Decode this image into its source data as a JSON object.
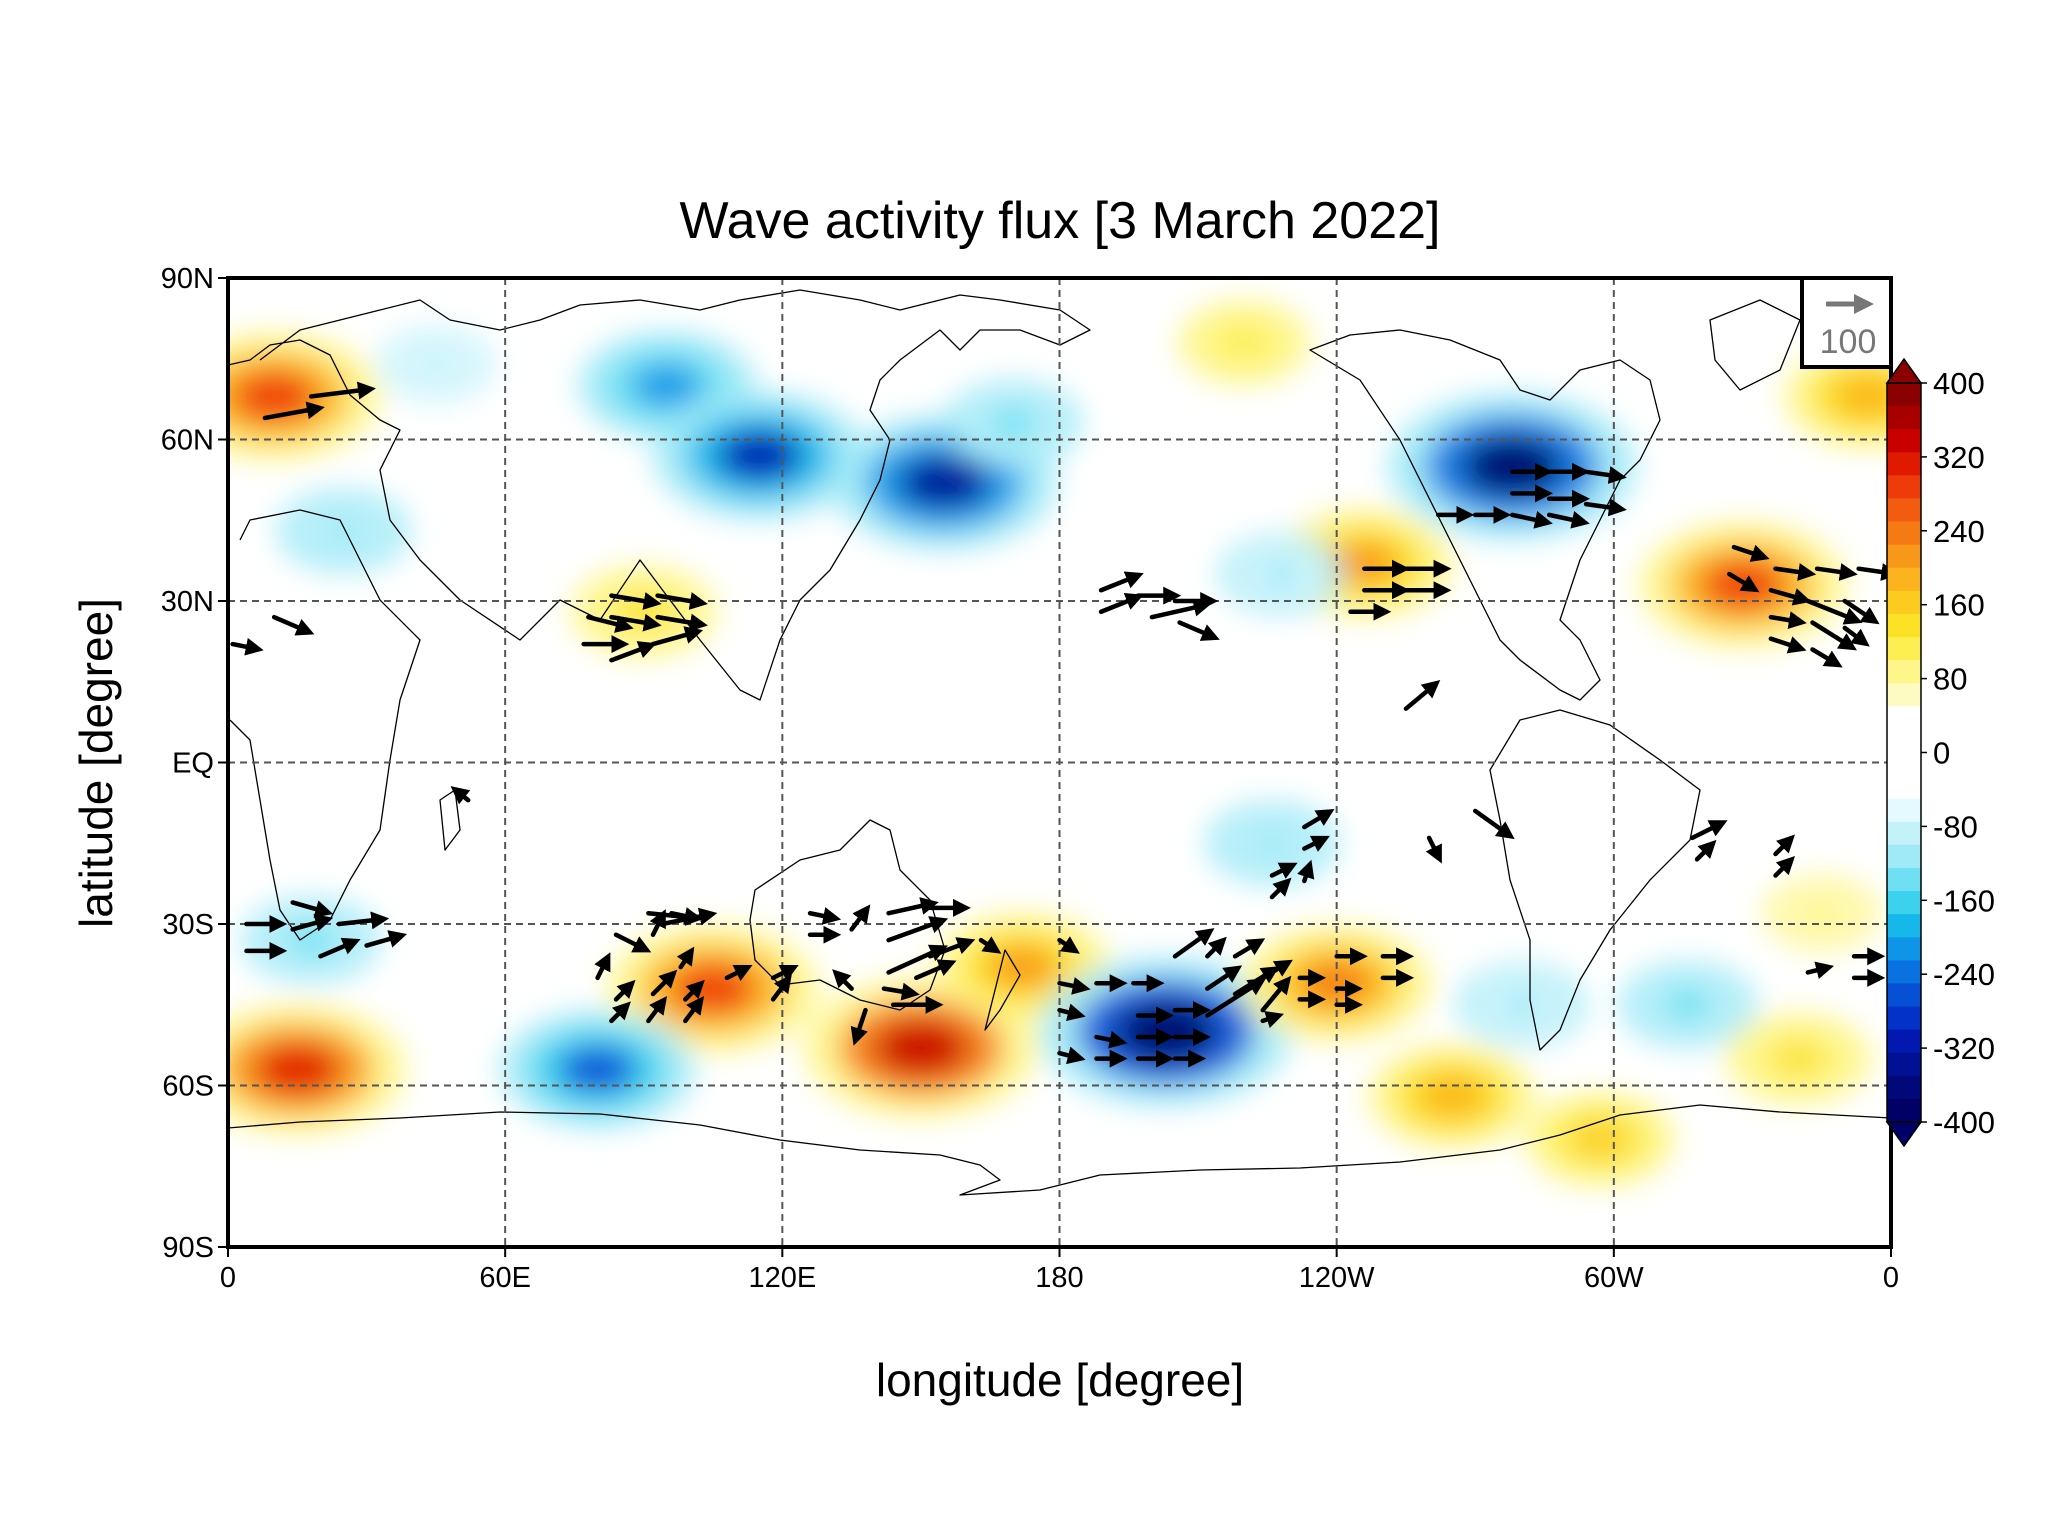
{
  "title": "Wave activity flux [3 March 2022]",
  "xlabel": "longitude [degree]",
  "ylabel": "latitude [degree]",
  "x_ticks": [
    {
      "lon": 0,
      "label": "0"
    },
    {
      "lon": 60,
      "label": "60E"
    },
    {
      "lon": 120,
      "label": "120E"
    },
    {
      "lon": 180,
      "label": "180"
    },
    {
      "lon": 240,
      "label": "120W"
    },
    {
      "lon": 300,
      "label": "60W"
    },
    {
      "lon": 360,
      "label": "0"
    }
  ],
  "y_ticks": [
    {
      "lat": 90,
      "label": "90N"
    },
    {
      "lat": 60,
      "label": "60N"
    },
    {
      "lat": 30,
      "label": "30N"
    },
    {
      "lat": 0,
      "label": "EQ"
    },
    {
      "lat": -30,
      "label": "30S"
    },
    {
      "lat": -60,
      "label": "60S"
    },
    {
      "lat": -90,
      "label": "90S"
    }
  ],
  "reference_vector": {
    "label": "100"
  },
  "colorbar": {
    "labels": [
      "400",
      "320",
      "240",
      "160",
      "80",
      "0",
      "-80",
      "-160",
      "-240",
      "-320",
      "-400"
    ],
    "colors_top_to_bottom": [
      "#8b0000",
      "#a80000",
      "#c80000",
      "#e01a00",
      "#ee3b0a",
      "#f25c10",
      "#f57a14",
      "#f8981a",
      "#fbb41e",
      "#fccb20",
      "#fde127",
      "#fdee52",
      "#fef68a",
      "#fefbc2",
      "#ffffff",
      "#ffffff",
      "#ffffff",
      "#ffffff",
      "#e4faff",
      "#c3f2fb",
      "#a0eaf7",
      "#6fe0f3",
      "#3cd2ee",
      "#16b8ec",
      "#0e95e8",
      "#0a72e0",
      "#0650d6",
      "#0432c8",
      "#0218b0",
      "#021093",
      "#01087a",
      "#000066"
    ]
  },
  "chart_data": {
    "type": "heatmap",
    "title": "Wave activity flux [3 March 2022]",
    "xlabel": "longitude [degree]",
    "ylabel": "latitude [degree]",
    "xlim": [
      0,
      360
    ],
    "ylim": [
      -90,
      90
    ],
    "grid": true,
    "colorbar_range": [
      -400,
      400
    ],
    "colorbar_step": 80,
    "field_anomalies": [
      {
        "lon": 10,
        "lat": 68,
        "value": 300
      },
      {
        "lon": 45,
        "lat": 74,
        "value": -80
      },
      {
        "lon": 95,
        "lat": 70,
        "value": -220
      },
      {
        "lon": 115,
        "lat": 57,
        "value": -300
      },
      {
        "lon": 155,
        "lat": 52,
        "value": -330
      },
      {
        "lon": 170,
        "lat": 63,
        "value": -130
      },
      {
        "lon": 25,
        "lat": 43,
        "value": -120
      },
      {
        "lon": 90,
        "lat": 28,
        "value": 150
      },
      {
        "lon": 220,
        "lat": 78,
        "value": 120
      },
      {
        "lon": 278,
        "lat": 55,
        "value": -380
      },
      {
        "lon": 246,
        "lat": 37,
        "value": 220
      },
      {
        "lon": 328,
        "lat": 33,
        "value": 290
      },
      {
        "lon": 355,
        "lat": 68,
        "value": 200
      },
      {
        "lon": 228,
        "lat": 35,
        "value": -100
      },
      {
        "lon": 226,
        "lat": -15,
        "value": -120
      },
      {
        "lon": 18,
        "lat": -33,
        "value": -130
      },
      {
        "lon": 15,
        "lat": -57,
        "value": 310
      },
      {
        "lon": 105,
        "lat": -42,
        "value": 300
      },
      {
        "lon": 150,
        "lat": -53,
        "value": 350
      },
      {
        "lon": 172,
        "lat": -38,
        "value": 220
      },
      {
        "lon": 80,
        "lat": -57,
        "value": -260
      },
      {
        "lon": 203,
        "lat": -50,
        "value": -390
      },
      {
        "lon": 240,
        "lat": -41,
        "value": 250
      },
      {
        "lon": 280,
        "lat": -45,
        "value": -110
      },
      {
        "lon": 316,
        "lat": -45,
        "value": -130
      },
      {
        "lon": 265,
        "lat": -62,
        "value": 200
      },
      {
        "lon": 297,
        "lat": -70,
        "value": 160
      },
      {
        "lon": 340,
        "lat": -55,
        "value": 150
      },
      {
        "lon": 345,
        "lat": -28,
        "value": 80
      }
    ],
    "vectors": [
      {
        "lon": 8,
        "lat": 64,
        "u": 22,
        "v": 4
      },
      {
        "lon": 18,
        "lat": 68,
        "u": 24,
        "v": 3
      },
      {
        "lon": 1,
        "lat": 22,
        "u": 10,
        "v": -2
      },
      {
        "lon": 10,
        "lat": 27,
        "u": 14,
        "v": -6
      },
      {
        "lon": 78,
        "lat": 27,
        "u": 16,
        "v": -4
      },
      {
        "lon": 77,
        "lat": 22,
        "u": 16,
        "v": 0
      },
      {
        "lon": 83,
        "lat": 31,
        "u": 18,
        "v": -3
      },
      {
        "lon": 83,
        "lat": 27,
        "u": 18,
        "v": -3
      },
      {
        "lon": 93,
        "lat": 31,
        "u": 18,
        "v": -3
      },
      {
        "lon": 93,
        "lat": 27,
        "u": 18,
        "v": -3
      },
      {
        "lon": 83,
        "lat": 19,
        "u": 16,
        "v": 6
      },
      {
        "lon": 92,
        "lat": 22,
        "u": 18,
        "v": 5
      },
      {
        "lon": 189,
        "lat": 32,
        "u": 15,
        "v": 6
      },
      {
        "lon": 189,
        "lat": 28,
        "u": 15,
        "v": 6
      },
      {
        "lon": 197,
        "lat": 31,
        "u": 15,
        "v": 0
      },
      {
        "lon": 205,
        "lat": 30,
        "u": 15,
        "v": 0
      },
      {
        "lon": 200,
        "lat": 27,
        "u": 22,
        "v": 5
      },
      {
        "lon": 206,
        "lat": 26,
        "u": 14,
        "v": -6
      },
      {
        "lon": 246,
        "lat": 36,
        "u": 16,
        "v": 0
      },
      {
        "lon": 246,
        "lat": 32,
        "u": 16,
        "v": 0
      },
      {
        "lon": 255,
        "lat": 36,
        "u": 16,
        "v": 0
      },
      {
        "lon": 255,
        "lat": 32,
        "u": 16,
        "v": 0
      },
      {
        "lon": 243,
        "lat": 28,
        "u": 14,
        "v": 0
      },
      {
        "lon": 255,
        "lat": 10,
        "u": 12,
        "v": 10
      },
      {
        "lon": 262,
        "lat": 46,
        "u": 12,
        "v": 0
      },
      {
        "lon": 270,
        "lat": 46,
        "u": 12,
        "v": 0
      },
      {
        "lon": 278,
        "lat": 54,
        "u": 14,
        "v": 0
      },
      {
        "lon": 286,
        "lat": 54,
        "u": 14,
        "v": 0
      },
      {
        "lon": 294,
        "lat": 54,
        "u": 14,
        "v": -2
      },
      {
        "lon": 278,
        "lat": 50,
        "u": 14,
        "v": 0
      },
      {
        "lon": 286,
        "lat": 49,
        "u": 14,
        "v": 0
      },
      {
        "lon": 294,
        "lat": 48,
        "u": 14,
        "v": -2
      },
      {
        "lon": 278,
        "lat": 46,
        "u": 14,
        "v": -3
      },
      {
        "lon": 286,
        "lat": 46,
        "u": 14,
        "v": -3
      },
      {
        "lon": 326,
        "lat": 40,
        "u": 12,
        "v": -4
      },
      {
        "lon": 335,
        "lat": 36,
        "u": 14,
        "v": -2
      },
      {
        "lon": 344,
        "lat": 36,
        "u": 14,
        "v": -2
      },
      {
        "lon": 353,
        "lat": 36,
        "u": 14,
        "v": -2
      },
      {
        "lon": 325,
        "lat": 35,
        "u": 10,
        "v": -6
      },
      {
        "lon": 334,
        "lat": 32,
        "u": 14,
        "v": -4
      },
      {
        "lon": 342,
        "lat": 30,
        "u": 20,
        "v": -8
      },
      {
        "lon": 350,
        "lat": 30,
        "u": 12,
        "v": -8
      },
      {
        "lon": 334,
        "lat": 27,
        "u": 12,
        "v": -2
      },
      {
        "lon": 343,
        "lat": 26,
        "u": 16,
        "v": -10
      },
      {
        "lon": 350,
        "lat": 25,
        "u": 8,
        "v": -6
      },
      {
        "lon": 334,
        "lat": 23,
        "u": 12,
        "v": -4
      },
      {
        "lon": 343,
        "lat": 21,
        "u": 10,
        "v": -6
      },
      {
        "lon": 14,
        "lat": -26,
        "u": 14,
        "v": -4
      },
      {
        "lon": 52,
        "lat": -7,
        "u": -5,
        "v": 4
      },
      {
        "lon": 4,
        "lat": -30,
        "u": 14,
        "v": 0
      },
      {
        "lon": 4,
        "lat": -35,
        "u": 14,
        "v": 0
      },
      {
        "lon": 14,
        "lat": -31,
        "u": 14,
        "v": 4
      },
      {
        "lon": 24,
        "lat": -30,
        "u": 18,
        "v": 2
      },
      {
        "lon": 20,
        "lat": -36,
        "u": 14,
        "v": 6
      },
      {
        "lon": 30,
        "lat": -34,
        "u": 14,
        "v": 4
      },
      {
        "lon": 84,
        "lat": -32,
        "u": 12,
        "v": -6
      },
      {
        "lon": 91,
        "lat": -28,
        "u": 20,
        "v": -2
      },
      {
        "lon": 94,
        "lat": -30,
        "u": 20,
        "v": 4
      },
      {
        "lon": 96,
        "lat": -28,
        "u": 10,
        "v": -2
      },
      {
        "lon": 80,
        "lat": -40,
        "u": 4,
        "v": 8
      },
      {
        "lon": 84,
        "lat": -44,
        "u": 6,
        "v": 6
      },
      {
        "lon": 92,
        "lat": -32,
        "u": 4,
        "v": 8
      },
      {
        "lon": 92,
        "lat": -43,
        "u": 8,
        "v": 8
      },
      {
        "lon": 98,
        "lat": -38,
        "u": 4,
        "v": 6
      },
      {
        "lon": 99,
        "lat": -44,
        "u": 6,
        "v": 6
      },
      {
        "lon": 83,
        "lat": -48,
        "u": 6,
        "v": 6
      },
      {
        "lon": 91,
        "lat": -48,
        "u": 6,
        "v": 8
      },
      {
        "lon": 99,
        "lat": -48,
        "u": 6,
        "v": 8
      },
      {
        "lon": 108,
        "lat": -40,
        "u": 8,
        "v": 4
      },
      {
        "lon": 118,
        "lat": -40,
        "u": 8,
        "v": 4
      },
      {
        "lon": 118,
        "lat": -44,
        "u": 6,
        "v": 8
      },
      {
        "lon": 126,
        "lat": -28,
        "u": 10,
        "v": -2
      },
      {
        "lon": 126,
        "lat": -32,
        "u": 10,
        "v": 0
      },
      {
        "lon": 135,
        "lat": -31,
        "u": 6,
        "v": 8
      },
      {
        "lon": 143,
        "lat": -28,
        "u": 18,
        "v": 4
      },
      {
        "lon": 152,
        "lat": -27,
        "u": 14,
        "v": 0
      },
      {
        "lon": 143,
        "lat": -33,
        "u": 22,
        "v": 8
      },
      {
        "lon": 143,
        "lat": -39,
        "u": 22,
        "v": 10
      },
      {
        "lon": 152,
        "lat": -36,
        "u": 16,
        "v": 6
      },
      {
        "lon": 135,
        "lat": -42,
        "u": -6,
        "v": 6
      },
      {
        "lon": 142,
        "lat": -42,
        "u": 12,
        "v": -2
      },
      {
        "lon": 149,
        "lat": -40,
        "u": 14,
        "v": 6
      },
      {
        "lon": 144,
        "lat": -45,
        "u": 18,
        "v": 0
      },
      {
        "lon": 138,
        "lat": -46,
        "u": -4,
        "v": -12
      },
      {
        "lon": 163,
        "lat": -33,
        "u": 6,
        "v": -4
      },
      {
        "lon": 180,
        "lat": -33,
        "u": 6,
        "v": -4
      },
      {
        "lon": 180,
        "lat": -41,
        "u": 10,
        "v": -2
      },
      {
        "lon": 180,
        "lat": -46,
        "u": 8,
        "v": -2
      },
      {
        "lon": 180,
        "lat": -54,
        "u": 8,
        "v": -2
      },
      {
        "lon": 188,
        "lat": -41,
        "u": 10,
        "v": 0
      },
      {
        "lon": 196,
        "lat": -41,
        "u": 10,
        "v": 0
      },
      {
        "lon": 188,
        "lat": -51,
        "u": 10,
        "v": -2
      },
      {
        "lon": 188,
        "lat": -55,
        "u": 10,
        "v": 0
      },
      {
        "lon": 197,
        "lat": -47,
        "u": 12,
        "v": 0
      },
      {
        "lon": 197,
        "lat": -51,
        "u": 12,
        "v": 0
      },
      {
        "lon": 197,
        "lat": -55,
        "u": 12,
        "v": 0
      },
      {
        "lon": 205,
        "lat": -46,
        "u": 12,
        "v": 0
      },
      {
        "lon": 205,
        "lat": -51,
        "u": 12,
        "v": 0
      },
      {
        "lon": 205,
        "lat": -55,
        "u": 10,
        "v": 0
      },
      {
        "lon": 205,
        "lat": -36,
        "u": 14,
        "v": 10
      },
      {
        "lon": 212,
        "lat": -36,
        "u": 6,
        "v": 6
      },
      {
        "lon": 212,
        "lat": -42,
        "u": 12,
        "v": 8
      },
      {
        "lon": 212,
        "lat": -47,
        "u": 22,
        "v": 14
      },
      {
        "lon": 218,
        "lat": -36,
        "u": 10,
        "v": 6
      },
      {
        "lon": 218,
        "lat": -43,
        "u": 16,
        "v": 10
      },
      {
        "lon": 224,
        "lat": -46,
        "u": 10,
        "v": 12
      },
      {
        "lon": 224,
        "lat": -40,
        "u": 10,
        "v": 6
      },
      {
        "lon": 232,
        "lat": -40,
        "u": 8,
        "v": 0
      },
      {
        "lon": 232,
        "lat": -44,
        "u": 8,
        "v": 0
      },
      {
        "lon": 240,
        "lat": -42,
        "u": 8,
        "v": 0
      },
      {
        "lon": 240,
        "lat": -36,
        "u": 10,
        "v": 0
      },
      {
        "lon": 250,
        "lat": -36,
        "u": 10,
        "v": 0
      },
      {
        "lon": 250,
        "lat": -40,
        "u": 10,
        "v": 0
      },
      {
        "lon": 240,
        "lat": -45,
        "u": 8,
        "v": 0
      },
      {
        "lon": 224,
        "lat": -48,
        "u": 6,
        "v": 2
      },
      {
        "lon": 226,
        "lat": -25,
        "u": 6,
        "v": 6
      },
      {
        "lon": 226,
        "lat": -21,
        "u": 8,
        "v": 4
      },
      {
        "lon": 233,
        "lat": -16,
        "u": 8,
        "v": 4
      },
      {
        "lon": 233,
        "lat": -12,
        "u": 10,
        "v": 6
      },
      {
        "lon": 233,
        "lat": -22,
        "u": 2,
        "v": 6
      },
      {
        "lon": 260,
        "lat": -14,
        "u": 4,
        "v": -8
      },
      {
        "lon": 270,
        "lat": -9,
        "u": 14,
        "v": -10
      },
      {
        "lon": 317,
        "lat": -14,
        "u": 12,
        "v": 6
      },
      {
        "lon": 318,
        "lat": -18,
        "u": 6,
        "v": 6
      },
      {
        "lon": 335,
        "lat": -17,
        "u": 6,
        "v": 6
      },
      {
        "lon": 335,
        "lat": -21,
        "u": 6,
        "v": 6
      },
      {
        "lon": 352,
        "lat": -36,
        "u": 10,
        "v": 0
      },
      {
        "lon": 352,
        "lat": -40,
        "u": 10,
        "v": 0
      },
      {
        "lon": 342,
        "lat": -39,
        "u": 8,
        "v": 2
      }
    ]
  }
}
